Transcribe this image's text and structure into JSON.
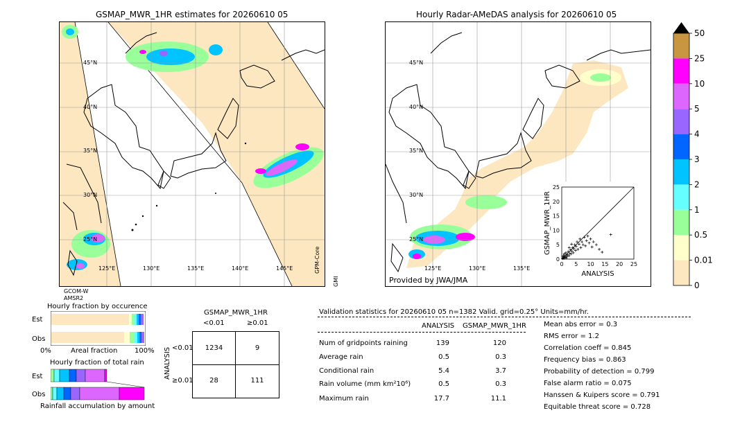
{
  "left_map": {
    "title": "GSMAP_MWR_1HR estimates for 20260610 05",
    "lat_labels": [
      "45°N",
      "40°N",
      "35°N",
      "30°N",
      "25°N"
    ],
    "lon_labels": [
      "125°E",
      "130°E",
      "135°E",
      "140°E",
      "145°E"
    ],
    "satellite_left": "GCOM-W",
    "sensor_left": "AMSR2",
    "satellite_right": "GPM-Core",
    "sensor_right": "GMI"
  },
  "right_map": {
    "title": "Hourly Radar-AMeDAS analysis for 20260610 05",
    "lat_labels": [
      "45°N",
      "40°N",
      "35°N",
      "30°N",
      "25°N"
    ],
    "lon_labels": [
      "125°E",
      "130°E",
      "135°E"
    ],
    "credit": "Provided by JWA/JMA"
  },
  "colorbar": {
    "labels": [
      "50",
      "25",
      "10",
      "5",
      "4",
      "3",
      "2",
      "1",
      "0.5",
      "0.01",
      "0"
    ],
    "colors": [
      "#c89640",
      "#ff00ff",
      "#dd66ff",
      "#9966ff",
      "#0066ff",
      "#00c3ff",
      "#66ffff",
      "#99ff99",
      "#ffffcc",
      "#fde7c0"
    ]
  },
  "scatter": {
    "xlabel": "ANALYSIS",
    "ylabel": "GSMAP_MWR_1HR",
    "ticks": [
      "0",
      "5",
      "10",
      "15",
      "20",
      "25"
    ]
  },
  "fraction_occurrence": {
    "title": "Hourly fraction by occurence",
    "rows": [
      "Est",
      "Obs"
    ],
    "axis_left": "0%",
    "axis_mid": "Areal fraction",
    "axis_right": "100%"
  },
  "fraction_total": {
    "title": "Hourly fraction of total rain",
    "rows": [
      "Est",
      "Obs"
    ],
    "axis_label": "Rainfall accumulation by amount"
  },
  "contingency": {
    "title": "GSMAP_MWR_1HR",
    "col_labels": [
      "<0.01",
      "≥0.01"
    ],
    "row_axis": "ANALYSIS",
    "row_labels": [
      "<0.01",
      "≥0.01"
    ],
    "cells": [
      [
        "1234",
        "9"
      ],
      [
        "28",
        "111"
      ]
    ]
  },
  "validation": {
    "header": "Validation statistics for 20260610 05  n=1382 Valid. grid=0.25° Units=mm/hr.",
    "col_analysis": "ANALYSIS",
    "col_gsmap": "GSMAP_MWR_1HR",
    "rows": [
      {
        "label": "Num of gridpoints raining",
        "analysis": "139",
        "gsmap": "120"
      },
      {
        "label": "Average rain",
        "analysis": "0.5",
        "gsmap": "0.3"
      },
      {
        "label": "Conditional rain",
        "analysis": "5.4",
        "gsmap": "3.7"
      },
      {
        "label": "Rain volume (mm km²10⁶)",
        "analysis": "0.5",
        "gsmap": "0.3"
      },
      {
        "label": "Maximum rain",
        "analysis": "17.7",
        "gsmap": "11.1"
      }
    ],
    "scores": [
      "Mean abs error =    0.3",
      "RMS error =    1.2",
      "Correlation coeff =  0.845",
      "Frequency bias =  0.863",
      "Probability of detection =  0.799",
      "False alarm ratio =  0.075",
      "Hanssen & Kuipers score =  0.791",
      "Equitable threat score =  0.728"
    ]
  },
  "chart_data": [
    {
      "type": "scatter",
      "title": "",
      "xlabel": "ANALYSIS",
      "ylabel": "GSMAP_MWR_1HR",
      "xlim": [
        0,
        25
      ],
      "ylim": [
        0,
        25
      ],
      "points": [
        [
          0.3,
          0.2
        ],
        [
          0.5,
          0.4
        ],
        [
          0.8,
          0.3
        ],
        [
          1.0,
          0.9
        ],
        [
          1.2,
          0.6
        ],
        [
          1.5,
          1.4
        ],
        [
          1.8,
          0.8
        ],
        [
          2.0,
          1.5
        ],
        [
          2.2,
          2.6
        ],
        [
          2.5,
          1.2
        ],
        [
          2.8,
          2.0
        ],
        [
          3.0,
          3.2
        ],
        [
          3.2,
          1.8
        ],
        [
          3.5,
          2.8
        ],
        [
          3.8,
          4.0
        ],
        [
          4.0,
          2.2
        ],
        [
          4.2,
          3.6
        ],
        [
          4.5,
          5.0
        ],
        [
          4.8,
          3.0
        ],
        [
          5.0,
          4.4
        ],
        [
          5.3,
          6.0
        ],
        [
          5.6,
          3.4
        ],
        [
          6.0,
          5.2
        ],
        [
          6.3,
          7.0
        ],
        [
          6.6,
          4.0
        ],
        [
          7.0,
          6.0
        ],
        [
          7.4,
          5.0
        ],
        [
          7.8,
          7.6
        ],
        [
          8.2,
          4.6
        ],
        [
          8.6,
          6.4
        ],
        [
          9.0,
          8.0
        ],
        [
          9.5,
          5.6
        ],
        [
          10.0,
          7.0
        ],
        [
          10.5,
          4.2
        ],
        [
          11.0,
          6.0
        ],
        [
          12.0,
          5.0
        ],
        [
          13.0,
          3.4
        ],
        [
          14.0,
          2.4
        ],
        [
          17.0,
          8.5
        ],
        [
          0.6,
          1.2
        ],
        [
          1.4,
          2.2
        ],
        [
          2.6,
          4.0
        ],
        [
          3.4,
          5.2
        ],
        [
          0.4,
          0.8
        ],
        [
          1.6,
          0.4
        ],
        [
          0.9,
          1.8
        ]
      ]
    }
  ]
}
